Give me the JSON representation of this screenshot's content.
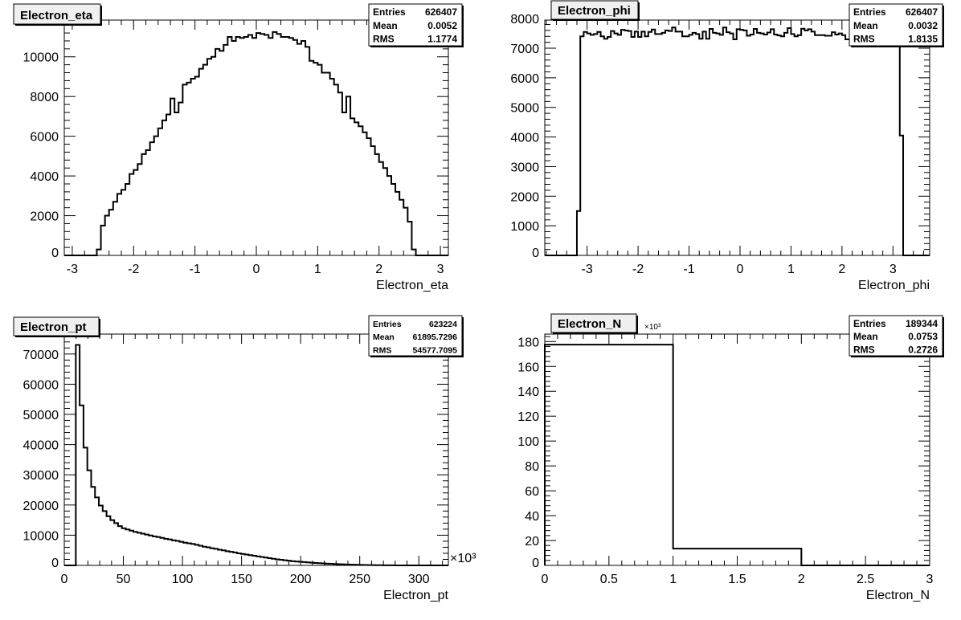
{
  "canvas": {
    "background": "#ffffff",
    "line_color": "#000000",
    "title_box_fill": "#f0f0f0"
  },
  "chart_data": [
    {
      "type": "bar",
      "style": "step-histogram",
      "title": "Electron_eta",
      "xlabel": "Electron_eta",
      "ylabel": "",
      "xlim": [
        -3.13,
        3.13
      ],
      "ylim": [
        0,
        11850
      ],
      "x_ticks": [
        -3,
        -2,
        -1,
        0,
        1,
        2,
        3
      ],
      "x_tick_labels": [
        "-3",
        "-2",
        "-1",
        "0",
        "1",
        "2",
        "3"
      ],
      "x_minor": 0.2,
      "y_ticks": [
        0,
        2000,
        4000,
        6000,
        8000,
        10000
      ],
      "y_tick_labels": [
        "0",
        "2000",
        "4000",
        "6000",
        "8000",
        "10000"
      ],
      "y_minor": 400,
      "bin_range": [
        -3,
        3
      ],
      "values": [
        0,
        0,
        0,
        0,
        0,
        0,
        300,
        1500,
        2000,
        2300,
        2700,
        3100,
        3300,
        3600,
        4100,
        4300,
        4600,
        5100,
        5300,
        5700,
        6000,
        6400,
        6800,
        7100,
        7900,
        7200,
        7700,
        8600,
        8700,
        8900,
        9000,
        9400,
        9600,
        9900,
        10000,
        10400,
        10300,
        10600,
        11000,
        10800,
        11000,
        10950,
        11000,
        11100,
        10950,
        11200,
        11150,
        11100,
        10950,
        11250,
        11150,
        11000,
        11000,
        10950,
        10850,
        10650,
        10800,
        10500,
        9800,
        9700,
        9600,
        9200,
        9200,
        8900,
        8600,
        8200,
        7200,
        8000,
        6900,
        6700,
        6500,
        6200,
        5900,
        5500,
        5100,
        4700,
        4400,
        4000,
        3600,
        3200,
        2800,
        2400,
        1700,
        300,
        0,
        0,
        0,
        0,
        0,
        0
      ],
      "stats": [
        {
          "label": "Entries",
          "value": "626407"
        },
        {
          "label": "Mean",
          "value": "0.0052"
        },
        {
          "label": "RMS",
          "value": "1.1774"
        }
      ],
      "grid": false
    },
    {
      "type": "bar",
      "style": "step-histogram",
      "title": "Electron_phi",
      "xlabel": "Electron_phi",
      "ylabel": "",
      "xlim": [
        -3.83,
        3.72
      ],
      "ylim": [
        0,
        7950
      ],
      "x_ticks": [
        -3,
        -2,
        -1,
        0,
        1,
        2,
        3
      ],
      "x_tick_labels": [
        "-3",
        "-2",
        "-1",
        "0",
        "1",
        "2",
        "3"
      ],
      "x_minor": 0.2,
      "y_ticks": [
        0,
        1000,
        2000,
        3000,
        4000,
        5000,
        6000,
        7000,
        8000
      ],
      "y_tick_labels": [
        "0",
        "1000",
        "2000",
        "3000",
        "4000",
        "5000",
        "6000",
        "7000",
        "8000"
      ],
      "y_minor": 200,
      "bin_range": [
        -3.2,
        3.2
      ],
      "values": [
        1500,
        7400,
        7550,
        7500,
        7450,
        7480,
        7550,
        7400,
        7320,
        7380,
        7580,
        7500,
        7450,
        7620,
        7600,
        7580,
        7380,
        7560,
        7380,
        7560,
        7400,
        7550,
        7630,
        7480,
        7480,
        7520,
        7600,
        7580,
        7700,
        7560,
        7560,
        7400,
        7400,
        7450,
        7520,
        7480,
        7320,
        7560,
        7320,
        7650,
        7520,
        7500,
        7450,
        7700,
        7540,
        7500,
        7300,
        7640,
        7620,
        7600,
        7420,
        7460,
        7650,
        7520,
        7500,
        7460,
        7530,
        7640,
        7460,
        7430,
        7400,
        7520,
        7680,
        7480,
        7400,
        7440,
        7660,
        7600,
        7640,
        7560,
        7440,
        7440,
        7440,
        7420,
        7420,
        7540,
        7460,
        7500,
        7440,
        7300,
        7300,
        7500,
        7550,
        7480,
        7420,
        7540,
        7480,
        7460,
        7480,
        7520,
        7440,
        7500,
        7420,
        7460,
        7520,
        4050
      ],
      "stats": [
        {
          "label": "Entries",
          "value": "626407"
        },
        {
          "label": "Mean",
          "value": "0.0032"
        },
        {
          "label": "RMS",
          "value": "1.8135"
        }
      ],
      "grid": false
    },
    {
      "type": "bar",
      "style": "step-histogram",
      "title": "Electron_pt",
      "xlabel": "Electron_pt",
      "ylabel": "",
      "x_multiplier": "×10³",
      "xlim": [
        0,
        325
      ],
      "ylim": [
        0,
        76600
      ],
      "x_ticks": [
        0,
        50,
        100,
        150,
        200,
        250,
        300
      ],
      "x_tick_labels": [
        "0",
        "50",
        "100",
        "150",
        "200",
        "250",
        "300"
      ],
      "x_minor": 10,
      "y_ticks": [
        0,
        10000,
        20000,
        30000,
        40000,
        50000,
        60000,
        70000
      ],
      "y_tick_labels": [
        "0",
        "10000",
        "20000",
        "30000",
        "40000",
        "50000",
        "60000",
        "70000"
      ],
      "y_minor": 2000,
      "bin_range": [
        0,
        325
      ],
      "values": [
        0,
        0,
        0,
        73000,
        53000,
        39000,
        31500,
        26000,
        22500,
        19800,
        18000,
        16300,
        15000,
        14000,
        13000,
        12300,
        11900,
        11500,
        11100,
        10800,
        10500,
        10200,
        9900,
        9600,
        9400,
        9100,
        8800,
        8600,
        8300,
        8100,
        7800,
        7500,
        7300,
        7100,
        6800,
        6500,
        6200,
        6000,
        5700,
        5500,
        5200,
        5000,
        4700,
        4500,
        4300,
        4000,
        3800,
        3600,
        3400,
        3200,
        3000,
        2800,
        2600,
        2400,
        2200,
        2000,
        1850,
        1700,
        1550,
        1400,
        1300,
        1200,
        1100,
        1000,
        900,
        800,
        720,
        650,
        580,
        520,
        460,
        400,
        350,
        300,
        260,
        220,
        190,
        160,
        130,
        110,
        90,
        70,
        55,
        40,
        30,
        20,
        15,
        10,
        5,
        0,
        0,
        0,
        0,
        0,
        0,
        0,
        0,
        0,
        0,
        0
      ],
      "stats": [
        {
          "label": "Entries",
          "value": "623224"
        },
        {
          "label": "Mean",
          "value": "61895.7296"
        },
        {
          "label": "RMS",
          "value": "54577.7095"
        }
      ],
      "grid": false
    },
    {
      "type": "bar",
      "style": "step-histogram",
      "title": "Electron_N",
      "xlabel": "Electron_N",
      "ylabel": "",
      "y_multiplier": "×10³",
      "xlim": [
        0,
        3
      ],
      "ylim": [
        0,
        186
      ],
      "x_ticks": [
        0,
        0.5,
        1,
        1.5,
        2,
        2.5,
        3
      ],
      "x_tick_labels": [
        "0",
        "0.5",
        "1",
        "1.5",
        "2",
        "2.5",
        "3"
      ],
      "x_minor": 0.1,
      "y_ticks": [
        0,
        20,
        40,
        60,
        80,
        100,
        120,
        140,
        160,
        180
      ],
      "y_tick_labels": [
        "0",
        "20",
        "40",
        "60",
        "80",
        "100",
        "120",
        "140",
        "160",
        "180"
      ],
      "y_minor": 4,
      "bin_range": [
        0,
        3
      ],
      "values": [
        177.5,
        13.5,
        0
      ],
      "stats": [
        {
          "label": "Entries",
          "value": "189344"
        },
        {
          "label": "Mean",
          "value": "0.0753"
        },
        {
          "label": "RMS",
          "value": "0.2726"
        }
      ],
      "grid": false
    }
  ]
}
